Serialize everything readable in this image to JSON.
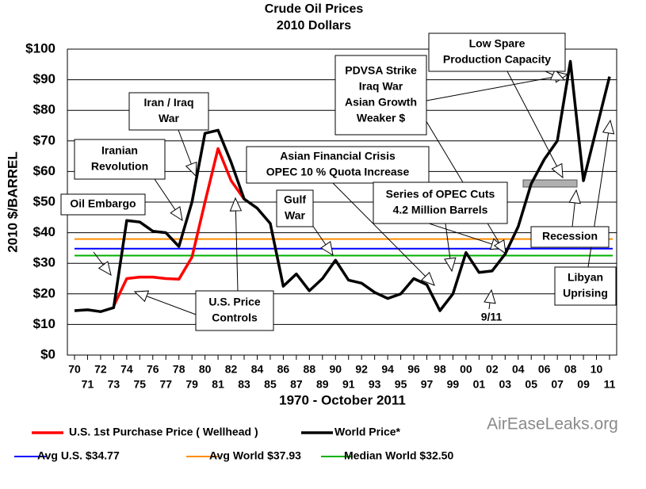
{
  "chart_data": {
    "type": "line",
    "title": "Crude Oil Prices",
    "subtitle": "2010 Dollars",
    "y_label": "2010 $/BARREL",
    "x_label": "1970 - October 2011",
    "watermark": "AirEaseLeaks.org",
    "categories": [
      "70",
      "71",
      "72",
      "73",
      "74",
      "75",
      "76",
      "77",
      "78",
      "79",
      "80",
      "81",
      "82",
      "83",
      "84",
      "85",
      "86",
      "87",
      "88",
      "89",
      "90",
      "91",
      "92",
      "93",
      "94",
      "95",
      "96",
      "97",
      "98",
      "99",
      "00",
      "01",
      "02",
      "03",
      "04",
      "05",
      "06",
      "07",
      "08",
      "09",
      "10",
      "11"
    ],
    "ylim": [
      0,
      100
    ],
    "yticks": [
      {
        "value": 0,
        "label": "$0"
      },
      {
        "value": 10,
        "label": "$10"
      },
      {
        "value": 20,
        "label": "$20"
      },
      {
        "value": 30,
        "label": "$30"
      },
      {
        "value": 40,
        "label": "$40"
      },
      {
        "value": 50,
        "label": "$50"
      },
      {
        "value": 60,
        "label": "$60"
      },
      {
        "value": 70,
        "label": "$70"
      },
      {
        "value": 80,
        "label": "$80"
      },
      {
        "value": 90,
        "label": "$90"
      },
      {
        "value": 100,
        "label": "$100"
      }
    ],
    "grid": true,
    "series": [
      {
        "name": "U.S. 1st Purchase Price ( Wellhead )",
        "color": "#ff0000",
        "values": [
          null,
          null,
          null,
          16,
          25,
          25.5,
          25.5,
          25,
          24.8,
          32,
          50,
          67.5,
          57,
          51,
          null,
          null,
          null,
          null,
          null,
          null,
          null,
          null,
          null,
          null,
          null,
          null,
          null,
          null,
          null,
          null,
          null,
          null,
          null,
          null,
          null,
          null,
          null,
          null,
          null,
          null,
          null,
          null
        ]
      },
      {
        "name": "World Price*",
        "color": "#000000",
        "values": [
          14.5,
          14.8,
          14.2,
          15.5,
          44,
          43.5,
          40.5,
          40,
          35.5,
          50,
          72.5,
          73.5,
          63,
          51,
          48,
          43,
          22.5,
          26.5,
          21,
          25,
          31,
          24.5,
          23.5,
          20.5,
          18.5,
          20,
          25,
          23,
          14.5,
          20,
          33.5,
          27,
          27.5,
          33,
          42,
          56,
          64,
          70,
          96,
          57,
          74,
          91
        ]
      }
    ],
    "reference_lines": [
      {
        "name": "Avg U.S. $34.77",
        "value": 34.77,
        "color": "#0000ff"
      },
      {
        "name": "Avg World $37.93",
        "value": 37.93,
        "color": "#ff8c00"
      },
      {
        "name": "Median World  $32.50",
        "value": 32.5,
        "color": "#00b000"
      }
    ],
    "annotations": [
      {
        "lines": [
          "Oil Embargo"
        ]
      },
      {
        "lines": [
          "Iranian",
          "Revolution"
        ]
      },
      {
        "lines": [
          "Iran / Iraq",
          "War"
        ]
      },
      {
        "lines": [
          "U.S. Price",
          "Controls"
        ]
      },
      {
        "lines": [
          "Gulf",
          "War"
        ]
      },
      {
        "lines": [
          "Asian Financial Crisis",
          "OPEC 10 % Quota Increase"
        ]
      },
      {
        "lines": [
          "Series of OPEC Cuts",
          "4.2 Million Barrels"
        ]
      },
      {
        "lines": [
          "PDVSA Strike",
          "Iraq War",
          "Asian Growth",
          "Weaker $"
        ]
      },
      {
        "lines": [
          "Low Spare",
          "Production Capacity"
        ]
      },
      {
        "lines": [
          "Recession"
        ]
      },
      {
        "lines": [
          "Libyan",
          "Uprising"
        ]
      },
      {
        "lines": [
          "9/11"
        ]
      }
    ]
  }
}
